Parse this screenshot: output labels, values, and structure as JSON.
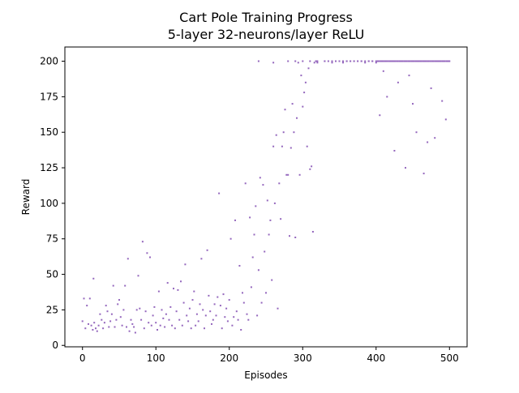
{
  "chart_data": {
    "type": "scatter",
    "title": "Cart Pole Training Progress",
    "subtitle": "5-layer 32-neurons/layer ReLU",
    "xlabel": "Episodes",
    "ylabel": "Reward",
    "xlim": [
      -24,
      524
    ],
    "ylim": [
      -1,
      210
    ],
    "xticks": [
      0,
      100,
      200,
      300,
      400,
      500
    ],
    "yticks": [
      0,
      25,
      50,
      75,
      100,
      125,
      150,
      175,
      200
    ],
    "grid": false,
    "legend": "none",
    "marker_color": "#9467bd",
    "series": [
      {
        "x": [
          0,
          2,
          4,
          6,
          8,
          10,
          12,
          14,
          15,
          16,
          18,
          20,
          22,
          24,
          26,
          28,
          30,
          32,
          34,
          36,
          38,
          40,
          42,
          44,
          46,
          48,
          50,
          52,
          54,
          56,
          58,
          60,
          62,
          64,
          66,
          68,
          70,
          72,
          74,
          76,
          78,
          80,
          82,
          84,
          86,
          88,
          90,
          92,
          94,
          96,
          98,
          100,
          102,
          104,
          106,
          108,
          110,
          112,
          114,
          116,
          118,
          120,
          122,
          124,
          126,
          128,
          130,
          132,
          134,
          136,
          138,
          140,
          142,
          144,
          146,
          148,
          150,
          152,
          154,
          156,
          158,
          160,
          162,
          164,
          166,
          168,
          170,
          172,
          174,
          176,
          178,
          180,
          182,
          184,
          186,
          188,
          190,
          192,
          194,
          196,
          198,
          200,
          202,
          204,
          206,
          208,
          210,
          212,
          214,
          216,
          218,
          220,
          222,
          224,
          226,
          228,
          230,
          232,
          234,
          236,
          238,
          240,
          242,
          244,
          246,
          248,
          250,
          252,
          254,
          256,
          258,
          260,
          262,
          264,
          266,
          268,
          270,
          272,
          274,
          276,
          278,
          280,
          282,
          284,
          286,
          288,
          290,
          292,
          294,
          296,
          298,
          300,
          302,
          304,
          306,
          308,
          310,
          312,
          314,
          316,
          318,
          320,
          330,
          340,
          345,
          350,
          355,
          360,
          365,
          370,
          375,
          380,
          385,
          390,
          395,
          400,
          405,
          410,
          415,
          420,
          425,
          430,
          435,
          440,
          445,
          450,
          455,
          460,
          465,
          470,
          475,
          480,
          485,
          490,
          495,
          500
        ],
        "y": [
          17,
          33,
          12,
          28,
          15,
          33,
          14,
          11,
          47,
          16,
          12,
          10,
          14,
          22,
          18,
          12,
          16,
          28,
          24,
          13,
          17,
          22,
          42,
          13,
          18,
          29,
          32,
          20,
          14,
          25,
          42,
          13,
          61,
          10,
          18,
          15,
          13,
          9,
          25,
          49,
          26,
          18,
          73,
          12,
          24,
          65,
          16,
          62,
          14,
          21,
          27,
          16,
          11,
          38,
          14,
          25,
          19,
          13,
          22,
          44,
          18,
          27,
          14,
          40,
          12,
          24,
          39,
          18,
          45,
          14,
          30,
          57,
          21,
          17,
          26,
          12,
          32,
          38,
          14,
          22,
          17,
          29,
          61,
          25,
          12,
          21,
          67,
          35,
          24,
          15,
          18,
          29,
          21,
          34,
          107,
          28,
          12,
          36,
          20,
          26,
          17,
          32,
          75,
          14,
          20,
          88,
          24,
          18,
          56,
          11,
          37,
          30,
          114,
          22,
          18,
          90,
          41,
          62,
          78,
          98,
          21,
          53,
          118,
          30,
          113,
          66,
          37,
          102,
          78,
          88,
          46,
          140,
          100,
          148,
          26,
          114,
          89,
          140,
          150,
          166,
          120,
          120,
          77,
          139,
          170,
          150,
          76,
          160,
          199,
          120,
          190,
          168,
          178,
          185,
          140,
          195,
          124,
          126,
          80,
          199,
          200,
          199,
          200,
          199,
          200,
          200,
          199,
          200,
          200,
          200,
          200,
          200,
          199,
          200,
          200,
          200,
          162,
          193,
          175,
          200,
          137,
          185,
          200,
          125,
          190,
          170,
          150,
          200,
          121,
          143,
          181,
          146,
          200,
          172,
          159,
          200
        ],
        "x2": [
          240,
          260,
          280,
          290,
          300,
          310,
          320,
          330,
          335,
          340,
          345,
          350,
          355,
          360,
          365,
          370,
          375,
          380,
          385,
          390,
          395,
          400,
          402,
          404,
          406,
          408,
          410,
          412,
          414,
          416,
          418,
          420,
          422,
          424,
          426,
          428,
          430,
          432,
          434,
          436,
          438,
          440,
          442,
          444,
          446,
          448,
          450,
          452,
          454,
          456,
          458,
          460,
          462,
          464,
          466,
          468,
          470,
          472,
          474,
          476,
          478,
          480,
          482,
          484,
          486,
          488,
          490,
          492,
          494,
          496,
          498
        ],
        "y2": [
          200,
          199,
          200,
          200,
          200,
          200,
          200,
          200,
          200,
          200,
          200,
          200,
          200,
          200,
          200,
          200,
          200,
          200,
          200,
          200,
          200,
          199,
          200,
          200,
          200,
          200,
          200,
          200,
          200,
          200,
          200,
          200,
          200,
          200,
          200,
          200,
          200,
          200,
          200,
          200,
          200,
          200,
          200,
          200,
          200,
          200,
          200,
          200,
          200,
          200,
          200,
          200,
          200,
          200,
          200,
          200,
          200,
          200,
          200,
          200,
          200,
          200,
          200,
          200,
          200,
          200,
          200,
          200,
          200,
          200,
          200
        ]
      }
    ]
  }
}
